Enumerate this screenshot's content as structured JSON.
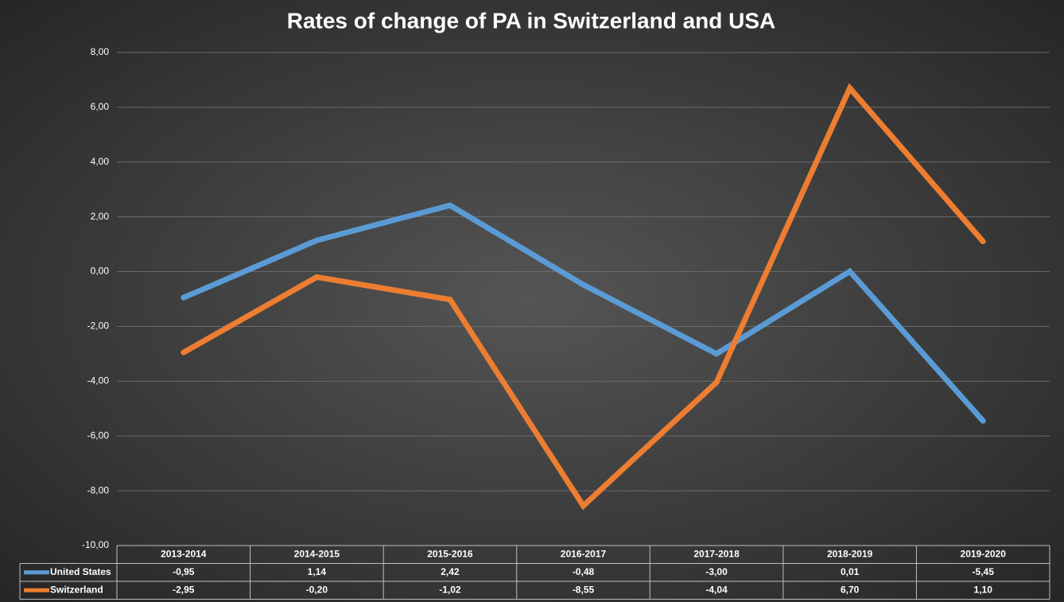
{
  "chart_data": {
    "type": "line",
    "title": "Rates of change of PA in Switzerland and USA",
    "categories": [
      "2013-2014",
      "2014-2015",
      "2015-2016",
      "2016-2017",
      "2017-2018",
      "2018-2019",
      "2019-2020"
    ],
    "series": [
      {
        "name": "United States",
        "color": "#5b9bd5",
        "values": [
          -0.95,
          1.14,
          2.42,
          -0.48,
          -3.0,
          0.01,
          -5.45
        ],
        "value_labels": [
          "-0,95",
          "1,14",
          "2,42",
          "-0,48",
          "-3,00",
          "0,01",
          "-5,45"
        ]
      },
      {
        "name": "Switzerland",
        "color": "#ed7d31",
        "values": [
          -2.95,
          -0.2,
          -1.02,
          -8.55,
          -4.04,
          6.7,
          1.1
        ],
        "value_labels": [
          "-2,95",
          "-0,20",
          "-1,02",
          "-8,55",
          "-4,04",
          "6,70",
          "1,10"
        ]
      }
    ],
    "ylim": [
      -10,
      8
    ],
    "yticks": [
      {
        "value": -10,
        "label": "-10,00"
      },
      {
        "value": -8,
        "label": "-8,00"
      },
      {
        "value": -6,
        "label": "-6,00"
      },
      {
        "value": -4,
        "label": "-4,00"
      },
      {
        "value": -2,
        "label": "-2,00"
      },
      {
        "value": 0,
        "label": "0,00"
      },
      {
        "value": 2,
        "label": "2,00"
      },
      {
        "value": 4,
        "label": "4,00"
      },
      {
        "value": 6,
        "label": "6,00"
      },
      {
        "value": 8,
        "label": "8,00"
      }
    ],
    "grid": true
  }
}
